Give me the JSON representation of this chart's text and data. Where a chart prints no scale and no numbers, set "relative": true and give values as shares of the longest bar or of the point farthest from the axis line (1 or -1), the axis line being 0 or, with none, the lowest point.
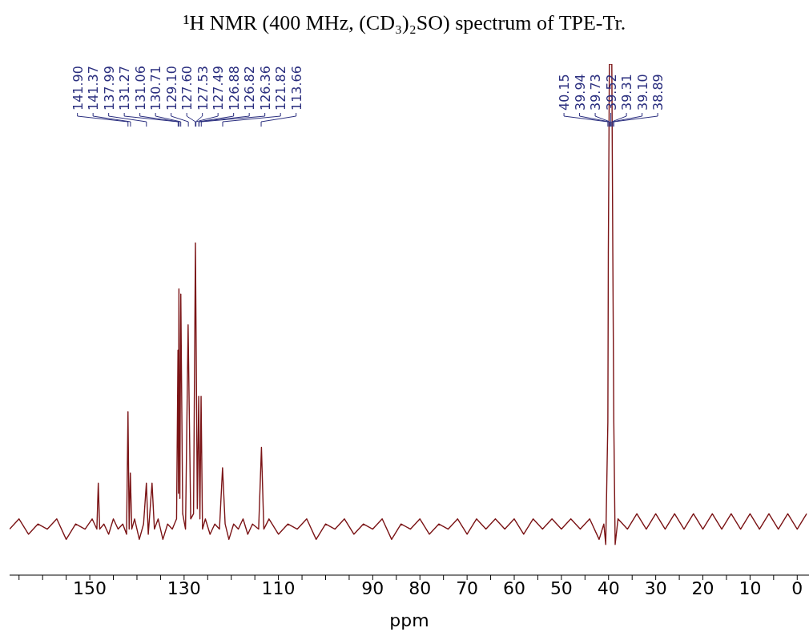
{
  "chart_data": {
    "type": "line",
    "title": "¹H NMR (400 MHz, (CD₃)₂SO) spectrum of TPE-Tr.",
    "xlabel": "ppm",
    "relative": true,
    "color": "#7b1416",
    "marker": "none",
    "line_style": "solid",
    "tick_labels": "x",
    "xlim": [
      167,
      -2.5
    ],
    "xticks": [
      {
        "value": 165,
        "label": null
      },
      {
        "value": 160,
        "label": null
      },
      {
        "value": 155,
        "label": null
      },
      150,
      {
        "value": 145,
        "label": null
      },
      {
        "value": 140,
        "label": null
      },
      {
        "value": 135,
        "label": null
      },
      130,
      {
        "value": 125,
        "label": null
      },
      {
        "value": 120,
        "label": null
      },
      {
        "value": 115,
        "label": null
      },
      110,
      {
        "value": 105,
        "label": null
      },
      {
        "value": 100,
        "label": null
      },
      {
        "value": 95,
        "label": null
      },
      90,
      {
        "value": 85,
        "label": null
      },
      80,
      {
        "value": 75,
        "label": null
      },
      70,
      {
        "value": 65,
        "label": null
      },
      60,
      {
        "value": 55,
        "label": null
      },
      50,
      {
        "value": 45,
        "label": null
      },
      40,
      {
        "value": 35,
        "label": null
      },
      30,
      {
        "value": 25,
        "label": null
      },
      20,
      {
        "value": 15,
        "label": null
      },
      10,
      {
        "value": 5,
        "label": null
      },
      0
    ],
    "x": [
      167,
      165,
      163,
      161,
      159,
      157,
      155,
      153,
      151,
      149.5,
      148.5,
      148.2,
      147.9,
      147,
      146,
      145,
      144,
      143,
      142.2,
      141.9,
      141.65,
      141.4,
      141.1,
      140.5,
      139.5,
      138.6,
      138.0,
      137.6,
      136.8,
      136.3,
      135.5,
      134.5,
      133.5,
      132.5,
      131.6,
      131.3,
      131.2,
      131.1,
      130.9,
      130.7,
      130.3,
      129.7,
      129.15,
      128.6,
      128.0,
      127.6,
      127.2,
      126.9,
      126.65,
      126.4,
      126.1,
      125.5,
      124.5,
      123.5,
      122.5,
      121.85,
      121.3,
      120.5,
      119.5,
      118.5,
      117.5,
      116.5,
      115.5,
      114.2,
      113.6,
      113.1,
      112,
      110,
      108,
      106,
      104,
      102,
      100,
      98,
      96,
      94,
      92,
      90,
      88,
      86,
      84,
      82,
      80,
      78,
      76,
      74,
      72,
      70,
      68,
      66,
      64,
      62,
      60,
      58,
      56,
      54,
      52,
      50,
      48,
      46,
      44,
      42,
      41,
      40.6,
      40.15,
      40.05,
      39.94,
      39.83,
      39.73,
      39.52,
      39.31,
      39.2,
      39.1,
      38.89,
      38.6,
      38,
      36,
      34,
      32,
      30,
      28,
      26,
      24,
      22,
      20,
      18,
      16,
      14,
      12,
      10,
      8,
      6,
      4,
      2,
      0,
      -2
    ],
    "values": [
      0.09,
      0.11,
      0.08,
      0.1,
      0.09,
      0.11,
      0.07,
      0.1,
      0.09,
      0.11,
      0.09,
      0.18,
      0.09,
      0.1,
      0.08,
      0.11,
      0.09,
      0.1,
      0.08,
      0.32,
      0.09,
      0.2,
      0.09,
      0.11,
      0.07,
      0.1,
      0.18,
      0.08,
      0.18,
      0.09,
      0.11,
      0.07,
      0.1,
      0.09,
      0.11,
      0.44,
      0.16,
      0.56,
      0.15,
      0.55,
      0.12,
      0.09,
      0.49,
      0.11,
      0.12,
      0.65,
      0.13,
      0.35,
      0.11,
      0.35,
      0.09,
      0.11,
      0.08,
      0.1,
      0.09,
      0.21,
      0.1,
      0.07,
      0.1,
      0.09,
      0.11,
      0.08,
      0.1,
      0.09,
      0.25,
      0.09,
      0.11,
      0.08,
      0.1,
      0.09,
      0.11,
      0.07,
      0.1,
      0.09,
      0.11,
      0.08,
      0.1,
      0.09,
      0.11,
      0.07,
      0.1,
      0.09,
      0.11,
      0.08,
      0.1,
      0.09,
      0.11,
      0.08,
      0.11,
      0.09,
      0.11,
      0.09,
      0.11,
      0.08,
      0.11,
      0.09,
      0.11,
      0.09,
      0.11,
      0.09,
      0.11,
      0.07,
      0.1,
      0.06,
      0.3,
      0.63,
      0.81,
      1,
      1,
      1,
      1,
      0.81,
      0.63,
      0.3,
      0.06,
      0.11,
      0.09,
      0.12,
      0.09,
      0.12,
      0.09,
      0.12,
      0.09,
      0.12,
      0.09,
      0.12,
      0.09,
      0.12,
      0.09,
      0.12,
      0.09,
      0.12,
      0.09,
      0.12,
      0.09,
      0.12
    ],
    "annotations": [
      {
        "text": "141.90",
        "x": 141.9
      },
      {
        "text": "141.37",
        "x": 141.37
      },
      {
        "text": "137.99",
        "x": 137.99
      },
      {
        "text": "131.27",
        "x": 131.27
      },
      {
        "text": "131.06",
        "x": 131.06
      },
      {
        "text": "130.71",
        "x": 130.71
      },
      {
        "text": "129.10",
        "x": 129.1
      },
      {
        "text": "127.60",
        "x": 127.6
      },
      {
        "text": "127.53",
        "x": 127.53
      },
      {
        "text": "127.49",
        "x": 127.49
      },
      {
        "text": "126.88",
        "x": 126.88
      },
      {
        "text": "126.82",
        "x": 126.82
      },
      {
        "text": "126.36",
        "x": 126.36
      },
      {
        "text": "121.82",
        "x": 121.82
      },
      {
        "text": "113.66",
        "x": 113.66
      },
      {
        "text": "40.15",
        "x": 40.15
      },
      {
        "text": "39.94",
        "x": 39.94
      },
      {
        "text": "39.73",
        "x": 39.73
      },
      {
        "text": "39.52",
        "x": 39.52
      },
      {
        "text": "39.31",
        "x": 39.31
      },
      {
        "text": "39.10",
        "x": 39.1
      },
      {
        "text": "38.89",
        "x": 38.89
      }
    ]
  }
}
